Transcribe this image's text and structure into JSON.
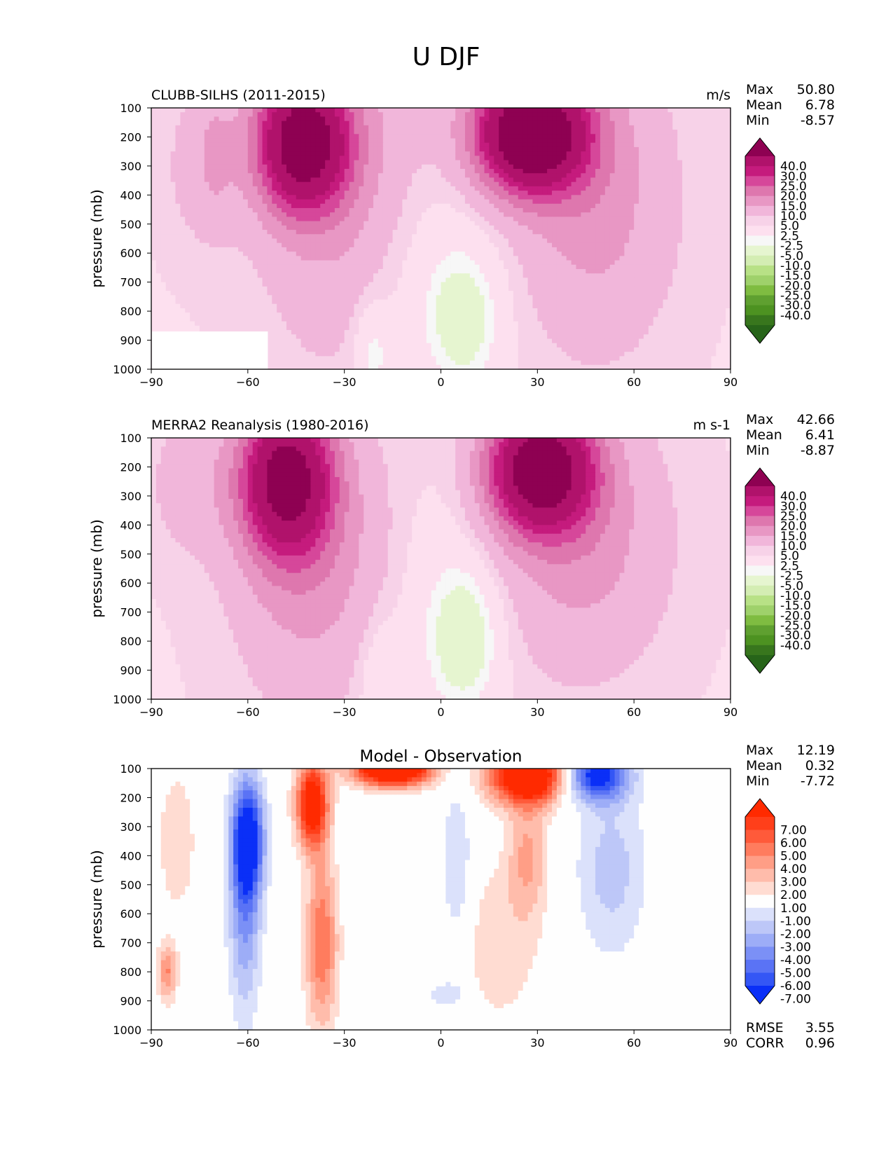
{
  "figure": {
    "title": "U DJF"
  },
  "chart_data": [
    {
      "type": "contour",
      "id": "model",
      "title": "CLUBB-SILHS (2011-2015)",
      "units": "m/s",
      "ylabel": "pressure (mb)",
      "xlim": [
        -90,
        90
      ],
      "ylim": [
        1000,
        100
      ],
      "xticks": [
        "−90",
        "−60",
        "−30",
        "0",
        "30",
        "60",
        "90"
      ],
      "xtick_values": [
        -90,
        -60,
        -30,
        0,
        30,
        60,
        90
      ],
      "yticks": [
        100,
        200,
        300,
        400,
        500,
        600,
        700,
        800,
        900,
        1000
      ],
      "stats": [
        {
          "label": "Max",
          "value": "50.80"
        },
        {
          "label": "Mean",
          "value": "6.78"
        },
        {
          "label": "Min",
          "value": "-8.57"
        }
      ],
      "colorbar": {
        "levels": [
          "40.0",
          "30.0",
          "25.0",
          "20.0",
          "15.0",
          "10.0",
          "5.0",
          "2.5",
          "-2.5",
          "-5.0",
          "-10.0",
          "-15.0",
          "-20.0",
          "-25.0",
          "-30.0",
          "-40.0"
        ],
        "colors": [
          "#8e0152",
          "#b0126b",
          "#c51b7d",
          "#d6479a",
          "#de77ae",
          "#e897c4",
          "#f1b6da",
          "#f7d2e8",
          "#fde0ef",
          "#f7f7f7",
          "#e6f5d0",
          "#d4edb3",
          "#b8e186",
          "#9fd16b",
          "#7fbc41",
          "#5fa030",
          "#4d9221",
          "#38761d",
          "#276419"
        ]
      },
      "features": [
        {
          "name": "Southern hemisphere jet core",
          "lat": -43,
          "p": 220,
          "value": 40
        },
        {
          "name": "Northern hemisphere jet core",
          "lat": 28,
          "p": 200,
          "value": 50.8
        },
        {
          "name": "Tropical easterlies",
          "lat": 5,
          "p": 850,
          "value": -8.57
        }
      ]
    },
    {
      "type": "contour",
      "id": "obs",
      "title": "MERRA2 Reanalysis (1980-2016)",
      "units": "m s-1",
      "ylabel": "pressure (mb)",
      "xlim": [
        -90,
        90
      ],
      "ylim": [
        1000,
        100
      ],
      "xticks": [
        "−90",
        "−60",
        "−30",
        "0",
        "30",
        "60",
        "90"
      ],
      "xtick_values": [
        -90,
        -60,
        -30,
        0,
        30,
        60,
        90
      ],
      "yticks": [
        100,
        200,
        300,
        400,
        500,
        600,
        700,
        800,
        900,
        1000
      ],
      "stats": [
        {
          "label": "Max",
          "value": "42.66"
        },
        {
          "label": "Mean",
          "value": "6.41"
        },
        {
          "label": "Min",
          "value": "-8.87"
        }
      ],
      "colorbar": {
        "levels": [
          "40.0",
          "30.0",
          "25.0",
          "20.0",
          "15.0",
          "10.0",
          "5.0",
          "2.5",
          "-2.5",
          "-5.0",
          "-10.0",
          "-15.0",
          "-20.0",
          "-25.0",
          "-30.0",
          "-40.0"
        ],
        "colors": [
          "#8e0152",
          "#b0126b",
          "#c51b7d",
          "#d6479a",
          "#de77ae",
          "#e897c4",
          "#f1b6da",
          "#f7d2e8",
          "#fde0ef",
          "#f7f7f7",
          "#e6f5d0",
          "#d4edb3",
          "#b8e186",
          "#9fd16b",
          "#7fbc41",
          "#5fa030",
          "#4d9221",
          "#38761d",
          "#276419"
        ]
      },
      "features": [
        {
          "name": "Southern hemisphere jet core",
          "lat": -48,
          "p": 240,
          "value": 40
        },
        {
          "name": "Northern hemisphere jet core",
          "lat": 31,
          "p": 220,
          "value": 42.66
        },
        {
          "name": "Tropical easterlies",
          "lat": 7,
          "p": 800,
          "value": -8.87
        }
      ]
    },
    {
      "type": "contour",
      "id": "diff",
      "title": "Model - Observation",
      "units": "",
      "ylabel": "pressure (mb)",
      "xlim": [
        -90,
        90
      ],
      "ylim": [
        1000,
        100
      ],
      "xticks": [
        "−90",
        "−60",
        "−30",
        "0",
        "30",
        "60",
        "90"
      ],
      "xtick_values": [
        -90,
        -60,
        -30,
        0,
        30,
        60,
        90
      ],
      "yticks": [
        100,
        200,
        300,
        400,
        500,
        600,
        700,
        800,
        900,
        1000
      ],
      "stats": [
        {
          "label": "Max",
          "value": "12.19"
        },
        {
          "label": "Mean",
          "value": "0.32"
        },
        {
          "label": "Min",
          "value": "-7.72"
        }
      ],
      "extra_stats": [
        {
          "label": "RMSE",
          "value": "3.55"
        },
        {
          "label": "CORR",
          "value": "0.96"
        }
      ],
      "colorbar": {
        "levels": [
          "7.00",
          "6.00",
          "5.00",
          "4.00",
          "3.00",
          "2.00",
          "1.00",
          "-1.00",
          "-2.00",
          "-3.00",
          "-4.00",
          "-5.00",
          "-6.00",
          "-7.00"
        ],
        "colors": [
          "#ff2a00",
          "#ff3f1a",
          "#ff5a3a",
          "#ff7c5e",
          "#ff9e86",
          "#ffbcab",
          "#ffdcd2",
          "#fefefe",
          "#dbe1fb",
          "#bdc7f8",
          "#9dadf7",
          "#7b90f6",
          "#5a73f5",
          "#3456f5",
          "#0a2ff7"
        ]
      },
      "features": [
        {
          "name": "Positive bias upper troposphere",
          "lat": -15,
          "p": 100,
          "value": 12.19
        },
        {
          "name": "Negative bias SH",
          "lat": -60,
          "p": 350,
          "value": -7.72
        }
      ]
    }
  ]
}
